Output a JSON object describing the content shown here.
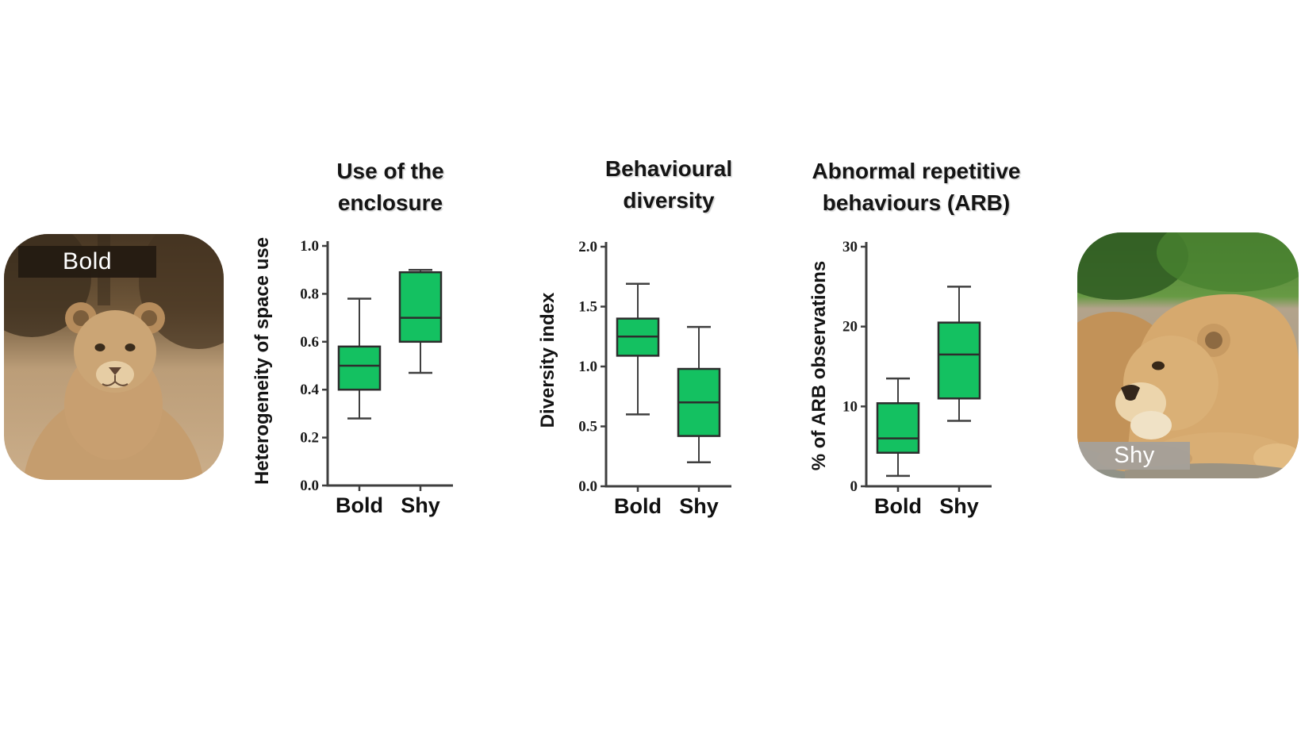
{
  "figure": {
    "photos": [
      {
        "label": "Bold",
        "banner_color": "rgba(36,27,18,0.96)",
        "text_color": "#ffffff",
        "side": "left"
      },
      {
        "label": "Shy",
        "banner_color": "rgba(165,160,153,0.96)",
        "text_color": "#ffffff",
        "side": "right"
      }
    ]
  },
  "colors": {
    "box_fill": "#14c161",
    "box_stroke": "#2d2d2d",
    "axis": "#3f3f3f",
    "text": "#141414"
  },
  "chart_data": [
    {
      "type": "box",
      "title": "Use of the enclosure",
      "title_lines": [
        "Use of the",
        "enclosure"
      ],
      "ylabel": "Heterogeneity of space use",
      "categories": [
        "Bold",
        "Shy"
      ],
      "ylim": [
        0.0,
        1.0
      ],
      "yticks": [
        "0.0",
        "0.2",
        "0.4",
        "0.6",
        "0.8",
        "1.0"
      ],
      "grid": false,
      "legend": "none",
      "series": [
        {
          "name": "Bold",
          "min": 0.28,
          "q1": 0.4,
          "median": 0.5,
          "q3": 0.58,
          "max": 0.78
        },
        {
          "name": "Shy",
          "min": 0.47,
          "q1": 0.6,
          "median": 0.7,
          "q3": 0.89,
          "max": 0.9
        }
      ]
    },
    {
      "type": "box",
      "title": "Behavioural diversity",
      "title_lines": [
        "Behavioural",
        "diversity"
      ],
      "ylabel": "Diversity index",
      "categories": [
        "Bold",
        "Shy"
      ],
      "ylim": [
        0.0,
        2.0
      ],
      "yticks": [
        "0.0",
        "0.5",
        "1.0",
        "1.5",
        "2.0"
      ],
      "grid": false,
      "legend": "none",
      "series": [
        {
          "name": "Bold",
          "min": 0.6,
          "q1": 1.09,
          "median": 1.25,
          "q3": 1.4,
          "max": 1.69
        },
        {
          "name": "Shy",
          "min": 0.2,
          "q1": 0.42,
          "median": 0.7,
          "q3": 0.98,
          "max": 1.33
        }
      ]
    },
    {
      "type": "box",
      "title": "Abnormal repetitive behaviours (ARB)",
      "title_lines": [
        "Abnormal repetitive",
        "behaviours (ARB)"
      ],
      "ylabel": "% of ARB observations",
      "categories": [
        "Bold",
        "Shy"
      ],
      "ylim": [
        0,
        30
      ],
      "yticks": [
        "0",
        "10",
        "20",
        "30"
      ],
      "grid": false,
      "legend": "none",
      "series": [
        {
          "name": "Bold",
          "min": 1.3,
          "q1": 4.2,
          "median": 6.0,
          "q3": 10.4,
          "max": 13.5
        },
        {
          "name": "Shy",
          "min": 8.2,
          "q1": 11.0,
          "median": 16.5,
          "q3": 20.5,
          "max": 25.0
        }
      ]
    }
  ]
}
